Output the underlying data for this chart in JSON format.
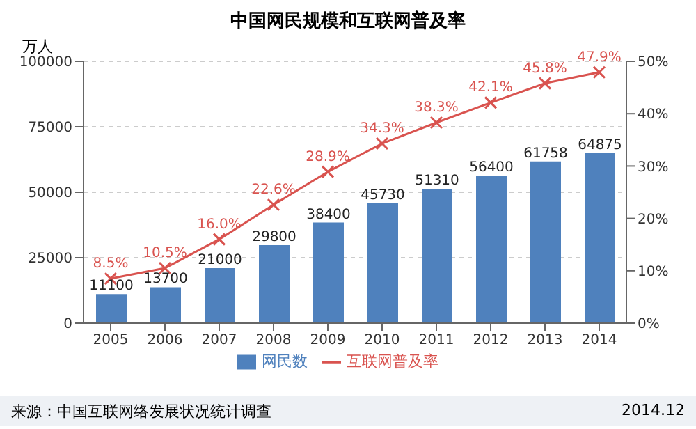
{
  "chart_data": {
    "type": "bar",
    "title": "中国网民规模和互联网普及率",
    "ylabel": "万人",
    "categories": [
      "2005",
      "2006",
      "2007",
      "2008",
      "2009",
      "2010",
      "2011",
      "2012",
      "2013",
      "2014"
    ],
    "series": [
      {
        "name": "网民数",
        "color": "#4f81bd",
        "values": [
          11100,
          13700,
          21000,
          29800,
          38400,
          45730,
          51310,
          56400,
          61758,
          64875
        ],
        "value_labels": [
          "11100",
          "13700",
          "21000",
          "29800",
          "38400",
          "45730",
          "51310",
          "56400",
          "61758",
          "64875"
        ]
      },
      {
        "name": "互联网普及率",
        "type": "line",
        "axis": "y2",
        "color": "#d9534f",
        "marker": "cross",
        "line_style": "solid",
        "values": [
          8.5,
          10.5,
          16.0,
          22.6,
          28.9,
          34.3,
          38.3,
          42.1,
          45.8,
          47.9
        ],
        "value_labels": [
          "8.5%",
          "10.5%",
          "16.0%",
          "22.6%",
          "28.9%",
          "34.3%",
          "38.3%",
          "42.1%",
          "45.8%",
          "47.9%"
        ]
      }
    ],
    "ylim": [
      0,
      100000
    ],
    "yticks": [
      0,
      25000,
      50000,
      75000,
      100000
    ],
    "y2lim": [
      0,
      50
    ],
    "y2ticks": [
      {
        "value": 0,
        "label": "0%"
      },
      {
        "value": 10,
        "label": "10%"
      },
      {
        "value": 20,
        "label": "20%"
      },
      {
        "value": 30,
        "label": "30%"
      },
      {
        "value": 40,
        "label": "40%"
      },
      {
        "value": 50,
        "label": "50%"
      }
    ],
    "grid": "y",
    "legend": "bottom",
    "annotations": [
      "来源：中国互联网络发展状况统计调查",
      "2014.12"
    ]
  }
}
